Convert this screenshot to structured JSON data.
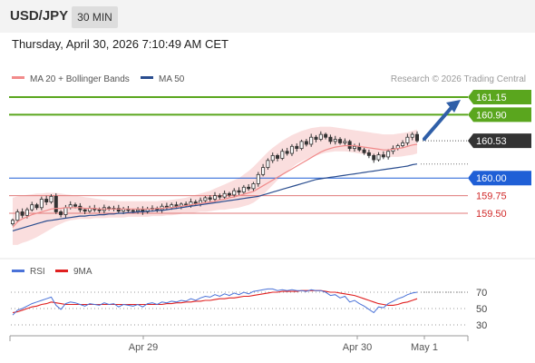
{
  "header": {
    "symbol": "USD/JPY",
    "timeframe": "30 MIN",
    "datetime": "Thursday, April 30, 2026 7:10:49 AM CET"
  },
  "chart_data": [
    {
      "type": "candlestick",
      "legend": [
        {
          "label": "MA 20 + Bollinger Bands",
          "color": "#f28b8b"
        },
        {
          "label": "MA 50",
          "color": "#2a4d8f"
        }
      ],
      "watermark": "Research © 2026 Trading Central",
      "y_range": [
        159.2,
        161.35
      ],
      "levels": [
        {
          "label": "161.15",
          "value": 161.15,
          "kind": "resistance",
          "color": "#5aa61e"
        },
        {
          "label": "160.90",
          "value": 160.9,
          "kind": "resistance",
          "color": "#5aa61e"
        },
        {
          "label": "160.53",
          "value": 160.53,
          "kind": "last",
          "color": "#333333"
        },
        {
          "label": "160.00",
          "value": 160.0,
          "kind": "pivot",
          "color": "#1f5fd6"
        },
        {
          "label": "159.75",
          "value": 159.75,
          "kind": "support",
          "color": "#e07a7a"
        },
        {
          "label": "159.50",
          "value": 159.5,
          "kind": "support",
          "color": "#e07a7a"
        }
      ],
      "close": [
        159.4,
        159.52,
        159.47,
        159.55,
        159.62,
        159.58,
        159.7,
        159.66,
        159.74,
        159.52,
        159.48,
        159.58,
        159.62,
        159.6,
        159.55,
        159.53,
        159.57,
        159.55,
        159.54,
        159.58,
        159.56,
        159.57,
        159.53,
        159.56,
        159.54,
        159.53,
        159.55,
        159.52,
        159.56,
        159.57,
        159.55,
        159.6,
        159.58,
        159.62,
        159.6,
        159.63,
        159.61,
        159.66,
        159.64,
        159.68,
        159.72,
        159.7,
        159.75,
        159.73,
        159.78,
        159.76,
        159.82,
        159.8,
        159.87,
        159.85,
        159.92,
        160.05,
        160.15,
        160.25,
        160.32,
        160.28,
        160.38,
        160.35,
        160.45,
        160.42,
        160.52,
        160.48,
        160.58,
        160.55,
        160.62,
        160.58,
        160.52,
        160.55,
        160.5,
        160.52,
        160.42,
        160.45,
        160.4,
        160.36,
        160.32,
        160.26,
        160.33,
        160.3,
        160.38,
        160.42,
        160.46,
        160.5,
        160.58,
        160.62,
        160.53
      ],
      "ma20": [
        159.3,
        159.38,
        159.42,
        159.45,
        159.48,
        159.5,
        159.52,
        159.54,
        159.56,
        159.57,
        159.57,
        159.58,
        159.58,
        159.58,
        159.58,
        159.57,
        159.57,
        159.57,
        159.56,
        159.56,
        159.56,
        159.56,
        159.56,
        159.56,
        159.56,
        159.56,
        159.56,
        159.56,
        159.56,
        159.56,
        159.57,
        159.57,
        159.58,
        159.58,
        159.59,
        159.6,
        159.61,
        159.62,
        159.63,
        159.64,
        159.65,
        159.66,
        159.67,
        159.69,
        159.7,
        159.72,
        159.73,
        159.75,
        159.77,
        159.79,
        159.81,
        159.85,
        159.89,
        159.93,
        159.97,
        160.01,
        160.05,
        160.09,
        160.13,
        160.17,
        160.21,
        160.25,
        160.29,
        160.33,
        160.37,
        160.4,
        160.42,
        160.44,
        160.45,
        160.46,
        160.46,
        160.46,
        160.45,
        160.44,
        160.43,
        160.42,
        160.41,
        160.4,
        160.4,
        160.41,
        160.42,
        160.43,
        160.45,
        160.47,
        160.48
      ],
      "bb_upper": [
        159.72,
        159.74,
        159.75,
        159.76,
        159.77,
        159.78,
        159.78,
        159.79,
        159.79,
        159.79,
        159.78,
        159.77,
        159.76,
        159.75,
        159.74,
        159.73,
        159.72,
        159.71,
        159.7,
        159.69,
        159.68,
        159.68,
        159.67,
        159.67,
        159.67,
        159.67,
        159.67,
        159.67,
        159.67,
        159.67,
        159.67,
        159.68,
        159.68,
        159.69,
        159.7,
        159.71,
        159.72,
        159.74,
        159.76,
        159.78,
        159.8,
        159.82,
        159.85,
        159.88,
        159.91,
        159.94,
        159.97,
        160.0,
        160.05,
        160.1,
        160.16,
        160.23,
        160.3,
        160.37,
        160.43,
        160.48,
        160.53,
        160.57,
        160.61,
        160.64,
        160.67,
        160.69,
        160.71,
        160.72,
        160.73,
        160.73,
        160.73,
        160.72,
        160.71,
        160.7,
        160.69,
        160.68,
        160.67,
        160.66,
        160.65,
        160.64,
        160.63,
        160.62,
        160.62,
        160.62,
        160.63,
        160.64,
        160.65,
        160.67,
        160.69
      ],
      "bb_lower": [
        159.05,
        159.05,
        159.08,
        159.1,
        159.13,
        159.16,
        159.2,
        159.24,
        159.28,
        159.32,
        159.35,
        159.38,
        159.4,
        159.41,
        159.42,
        159.42,
        159.42,
        159.43,
        159.43,
        159.43,
        159.44,
        159.44,
        159.44,
        159.44,
        159.45,
        159.45,
        159.45,
        159.45,
        159.45,
        159.46,
        159.46,
        159.46,
        159.47,
        159.47,
        159.48,
        159.49,
        159.5,
        159.5,
        159.51,
        159.52,
        159.52,
        159.53,
        159.54,
        159.55,
        159.55,
        159.56,
        159.57,
        159.58,
        159.6,
        159.62,
        159.65,
        159.7,
        159.76,
        159.83,
        159.9,
        159.97,
        160.04,
        160.1,
        160.15,
        160.2,
        160.24,
        160.27,
        160.3,
        160.32,
        160.34,
        160.36,
        160.37,
        160.38,
        160.38,
        160.38,
        160.37,
        160.36,
        160.35,
        160.34,
        160.33,
        160.32,
        160.31,
        160.3,
        160.3,
        160.3,
        160.3,
        160.31,
        160.32,
        160.33,
        160.35
      ],
      "ma50": [
        159.25,
        159.27,
        159.29,
        159.31,
        159.33,
        159.35,
        159.37,
        159.39,
        159.4,
        159.41,
        159.42,
        159.43,
        159.44,
        159.45,
        159.46,
        159.46,
        159.47,
        159.47,
        159.48,
        159.48,
        159.49,
        159.49,
        159.5,
        159.5,
        159.51,
        159.51,
        159.52,
        159.52,
        159.53,
        159.53,
        159.54,
        159.54,
        159.55,
        159.56,
        159.57,
        159.58,
        159.59,
        159.6,
        159.61,
        159.62,
        159.63,
        159.64,
        159.65,
        159.66,
        159.67,
        159.68,
        159.69,
        159.7,
        159.71,
        159.72,
        159.73,
        159.74,
        159.76,
        159.78,
        159.8,
        159.82,
        159.84,
        159.86,
        159.88,
        159.9,
        159.92,
        159.94,
        159.96,
        159.98,
        159.99,
        160.0,
        160.01,
        160.02,
        160.03,
        160.04,
        160.05,
        160.06,
        160.07,
        160.08,
        160.09,
        160.1,
        160.11,
        160.12,
        160.13,
        160.14,
        160.15,
        160.16,
        160.17,
        160.19,
        160.2
      ],
      "forecast_arrow": {
        "from": 160.53,
        "to": 161.15
      }
    },
    {
      "type": "line",
      "legend": [
        {
          "label": "RSI",
          "color": "#4a72d8"
        },
        {
          "label": "9MA",
          "color": "#e02020"
        }
      ],
      "y_range": [
        25,
        75
      ],
      "yticks": [
        70,
        50,
        30
      ],
      "rsi": [
        42,
        48,
        50,
        53,
        56,
        58,
        60,
        62,
        64,
        54,
        49,
        56,
        58,
        57,
        55,
        53,
        56,
        55,
        54,
        57,
        55,
        56,
        52,
        55,
        54,
        53,
        55,
        52,
        56,
        57,
        55,
        58,
        57,
        59,
        58,
        60,
        59,
        62,
        60,
        63,
        65,
        64,
        67,
        65,
        68,
        66,
        69,
        67,
        70,
        68,
        71,
        72,
        73,
        74,
        74,
        72,
        73,
        72,
        73,
        72,
        72,
        71,
        73,
        72,
        72,
        70,
        66,
        67,
        63,
        65,
        58,
        60,
        56,
        53,
        49,
        45,
        52,
        51,
        56,
        59,
        62,
        64,
        67,
        69,
        70
      ],
      "ma9": [
        45,
        46,
        48,
        50,
        52,
        53,
        55,
        56,
        58,
        57,
        56,
        55,
        55,
        55,
        55,
        55,
        55,
        55,
        55,
        55,
        55,
        55,
        55,
        55,
        55,
        55,
        55,
        55,
        55,
        55,
        55,
        55,
        56,
        56,
        57,
        57,
        58,
        58,
        59,
        59,
        60,
        60,
        61,
        62,
        62,
        63,
        63,
        64,
        65,
        65,
        66,
        67,
        68,
        69,
        70,
        70,
        71,
        71,
        71,
        71,
        72,
        72,
        72,
        72,
        72,
        71,
        70,
        70,
        69,
        68,
        67,
        66,
        64,
        62,
        60,
        58,
        56,
        55,
        54,
        54,
        55,
        57,
        58,
        60,
        62
      ],
      "x_labels": [
        "Apr 29",
        "Apr 30",
        "May 1"
      ]
    }
  ]
}
